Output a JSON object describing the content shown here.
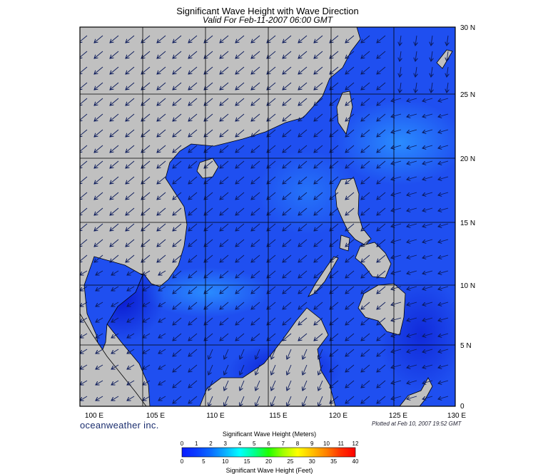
{
  "title": "Significant Wave Height with Wave Direction",
  "subtitle": "Valid For Feb-11-2007 06:00 GMT",
  "brand": "oceanweather inc.",
  "plotted": "Plotted at Feb 10, 2007 19:52 GMT",
  "map": {
    "lon_range": [
      100,
      130
    ],
    "lat_range": [
      0,
      30
    ],
    "lon_labels": [
      "100 E",
      "105 E",
      "110 E",
      "115 E",
      "120 E",
      "125 E",
      "130 E"
    ],
    "lat_labels": [
      "0",
      "5 N",
      "10 N",
      "15 N",
      "20 N",
      "25 N",
      "30 N"
    ],
    "land_color": "#c0c0c0",
    "ocean_color": "#1f4ff0"
  },
  "colorbar": {
    "title_meters": "Significant Wave Height (Meters)",
    "title_feet": "Significant Wave Height (Feet)",
    "meters_ticks": [
      "0",
      "1",
      "2",
      "3",
      "4",
      "5",
      "6",
      "7",
      "8",
      "9",
      "10",
      "11",
      "12"
    ],
    "feet_ticks": [
      "0",
      "5",
      "10",
      "15",
      "20",
      "25",
      "30",
      "35",
      "40"
    ],
    "colors": [
      "#0a1cff",
      "#0a3cff",
      "#0a6cff",
      "#0ab0ff",
      "#00ffff",
      "#00ff90",
      "#20ff00",
      "#a0ff00",
      "#ffff00",
      "#ffc000",
      "#ff8000",
      "#ff3000",
      "#ff0000"
    ]
  }
}
